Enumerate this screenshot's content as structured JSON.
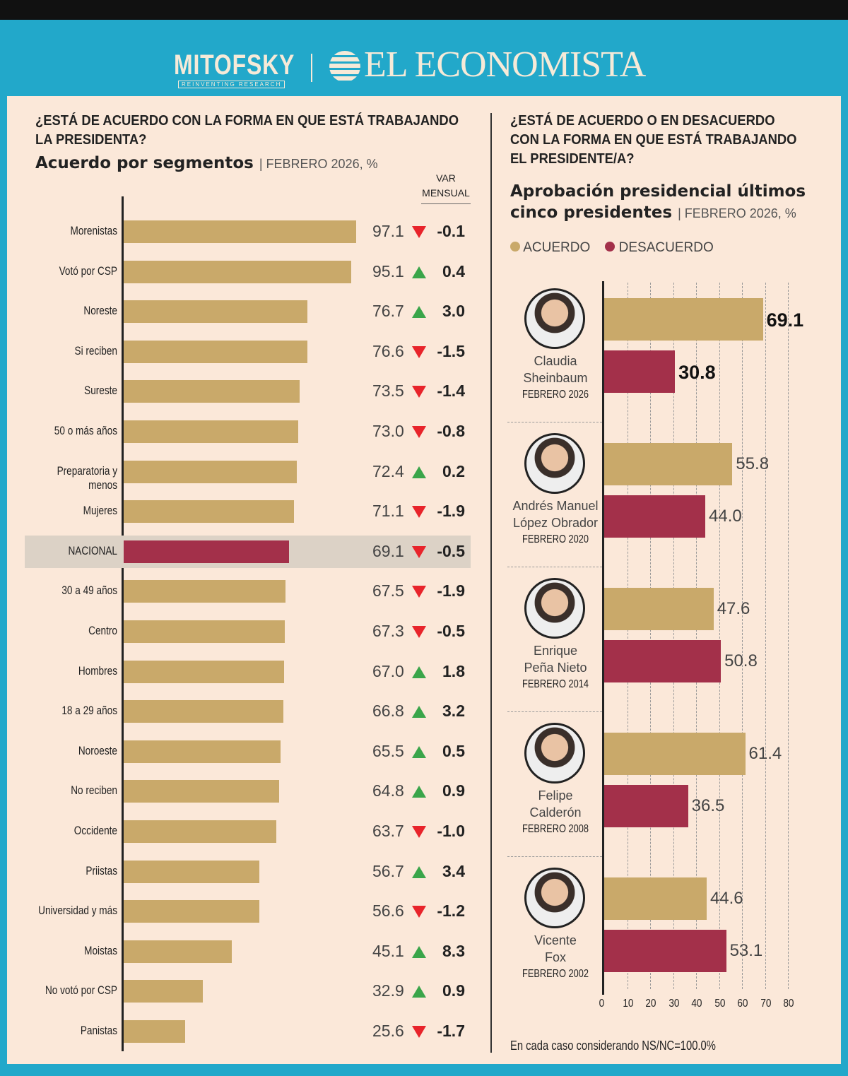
{
  "header": {
    "logo_left": "MITOFSKY",
    "logo_left_sub": "REINVENTING RESEARCH",
    "logo_right": "EL ECONOMISTA"
  },
  "colors": {
    "acuerdo": "#c9a96a",
    "desacuerdo": "#a3304a",
    "frame": "#22a8ca",
    "background": "#fbe8d9",
    "up": "#3aa54a",
    "down": "#e8242b"
  },
  "chart_data": [
    {
      "type": "bar",
      "orientation": "horizontal",
      "title": "¿ESTÁ DE ACUERDO CON LA FORMA EN QUE ESTÁ TRABAJANDO LA PRESIDENTA?",
      "subtitle": "Acuerdo por segmentos",
      "subtitle_note": "FEBRERO 2026, %",
      "var_header": "VAR MENSUAL",
      "highlight": "NACIONAL",
      "categories": [
        "Morenistas",
        "Votó por CSP",
        "Noreste",
        "Si reciben",
        "Sureste",
        "50 o más años",
        "Preparatoria y menos",
        "Mujeres",
        "NACIONAL",
        "30 a 49 años",
        "Centro",
        "Hombres",
        "18 a 29 años",
        "Noroeste",
        "No reciben",
        "Occidente",
        "Priistas",
        "Universidad y más",
        "Moistas",
        "No votó por CSP",
        "Panistas"
      ],
      "values": [
        97.1,
        95.1,
        76.7,
        76.6,
        73.5,
        73.0,
        72.4,
        71.1,
        69.1,
        67.5,
        67.3,
        67.0,
        66.8,
        65.5,
        64.8,
        63.7,
        56.7,
        56.6,
        45.1,
        32.9,
        25.6
      ],
      "value_labels": [
        "97.1",
        "95.1",
        "76.7",
        "76.6",
        "73.5",
        "73.0",
        "72.4",
        "71.1",
        "69.1",
        "67.5",
        "67.3",
        "67.0",
        "66.8",
        "65.5",
        "64.8",
        "63.7",
        "56.7",
        "56.6",
        "45.1",
        "32.9",
        "25.6"
      ],
      "var_mensual": [
        "-0.1",
        "0.4",
        "3.0",
        "-1.5",
        "-1.4",
        "-0.8",
        "0.2",
        "-1.9",
        "-0.5",
        "-1.9",
        "-0.5",
        "1.8",
        "3.2",
        "0.5",
        "0.9",
        "-1.0",
        "3.4",
        "-1.2",
        "8.3",
        "0.9",
        "-1.7"
      ]
    },
    {
      "type": "bar",
      "orientation": "horizontal",
      "title": "¿ESTÁ DE ACUERDO O EN DESACUERDO CON LA FORMA EN QUE ESTÁ TRABAJANDO EL PRESIDENTE/A?",
      "subtitle": "Aprobación presidencial últimos cinco presidentes",
      "subtitle_note": "FEBRERO 2026, %",
      "legend": [
        {
          "name": "ACUERDO",
          "color": "#c9a96a"
        },
        {
          "name": "DESACUERDO",
          "color": "#a3304a"
        }
      ],
      "legend_placement": "top",
      "xlim": [
        0,
        80
      ],
      "xticks": [
        "0",
        "10",
        "20",
        "30",
        "40",
        "50",
        "60",
        "70",
        "80"
      ],
      "grid": true,
      "categories": [
        {
          "name": [
            "Claudia",
            "Sheinbaum"
          ],
          "date": "FEBRERO 2026"
        },
        {
          "name": [
            "Andrés Manuel",
            "López Obrador"
          ],
          "date": "FEBRERO 2020"
        },
        {
          "name": [
            "Enrique",
            "Peña Nieto"
          ],
          "date": "FEBRERO 2014"
        },
        {
          "name": [
            "Felipe",
            "Calderón"
          ],
          "date": "FEBRERO 2008"
        },
        {
          "name": [
            "Vicente",
            "Fox"
          ],
          "date": "FEBRERO 2002"
        }
      ],
      "series": [
        {
          "name": "ACUERDO",
          "values": [
            69.1,
            55.8,
            47.6,
            61.4,
            44.6
          ],
          "labels": [
            "69.1",
            "55.8",
            "47.6",
            "61.4",
            "44.6"
          ]
        },
        {
          "name": "DESACUERDO",
          "values": [
            30.8,
            44.0,
            50.8,
            36.5,
            53.1
          ],
          "labels": [
            "30.8",
            "44.0",
            "50.8",
            "36.5",
            "53.1"
          ]
        }
      ],
      "footnote": "En cada caso considerando NS/NC=100.0%"
    }
  ]
}
